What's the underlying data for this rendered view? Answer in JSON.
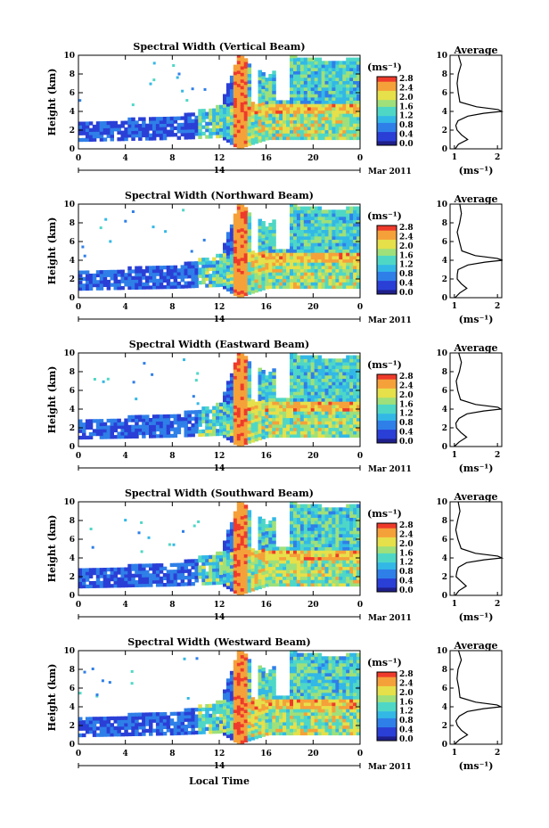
{
  "figure": {
    "xlabel": "Local Time",
    "date_label": "Mar 2011",
    "day_label": "14",
    "colorbar_unit": "(ms⁻¹)",
    "colorbar_ticks": [
      "0.0",
      "0.4",
      "0.8",
      "1.2",
      "1.6",
      "2.0",
      "2.4",
      "2.8"
    ],
    "avg_title": "Average",
    "avg_xlabel": "(ms⁻¹)",
    "avg_xticks": [
      "1",
      "2"
    ],
    "height_label": "Height (km)",
    "height_ticks": [
      "0",
      "2",
      "4",
      "6",
      "8",
      "10"
    ],
    "time_ticks": [
      "0",
      "4",
      "8",
      "12",
      "16",
      "20",
      "0"
    ]
  },
  "panels": [
    {
      "title": "Spectral Width (Vertical Beam)"
    },
    {
      "title": "Spectral Width (Northward Beam)"
    },
    {
      "title": "Spectral Width (Eastward Beam)"
    },
    {
      "title": "Spectral Width (Southward Beam)"
    },
    {
      "title": "Spectral Width (Westward Beam)"
    }
  ],
  "chart_data": {
    "type": "heatmap",
    "x_range_hours": [
      0,
      24
    ],
    "y_range_km": [
      0,
      10
    ],
    "color_range_ms": [
      0,
      3.0
    ],
    "colormap": [
      "#1f1f8a",
      "#2a3fd6",
      "#2f7fe8",
      "#33b8e6",
      "#4fd7c6",
      "#9fe07a",
      "#e6e04a",
      "#f5a13a",
      "#ee3b2b"
    ],
    "time_profile": [
      {
        "t": 0,
        "top": 2.6,
        "base": 0.8
      },
      {
        "t": 4,
        "top": 3.0,
        "base": 0.9
      },
      {
        "t": 8,
        "top": 3.2,
        "base": 1.0
      },
      {
        "t": 12,
        "top": 4.5,
        "base": 1.2
      },
      {
        "t": 13.5,
        "top": 10.0,
        "base": 0.0
      },
      {
        "t": 16,
        "top": 7.5,
        "base": 1.0
      },
      {
        "t": 18,
        "top": 9.8,
        "base": 1.0
      },
      {
        "t": 22,
        "top": 9.2,
        "base": 1.0
      },
      {
        "t": 24,
        "top": 9.8,
        "base": 1.0
      }
    ],
    "average_profile": {
      "height_km": [
        0,
        0.5,
        1,
        1.5,
        2,
        2.5,
        3,
        3.5,
        3.8,
        4.0,
        4.2,
        4.5,
        5,
        6,
        7,
        8,
        9,
        10
      ],
      "width_ms": [
        1.0,
        1.1,
        1.3,
        1.15,
        1.05,
        1.05,
        1.1,
        1.3,
        1.7,
        2.1,
        2.0,
        1.5,
        1.15,
        1.1,
        1.05,
        1.1,
        1.15,
        1.1
      ],
      "x_range": [
        0.9,
        2.1
      ]
    }
  }
}
